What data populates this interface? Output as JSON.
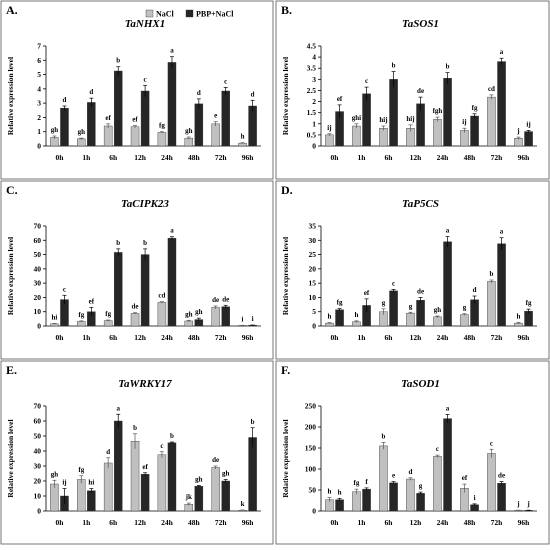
{
  "colors": {
    "nacl": "#c0c0c0",
    "pbp": "#262626",
    "axis": "#000000",
    "panel_border": "#555555"
  },
  "legend": {
    "items": [
      {
        "label": "NaCl",
        "color": "#c0c0c0"
      },
      {
        "label": "PBP+NaCl",
        "color": "#262626"
      }
    ]
  },
  "chart_data": [
    {
      "type": "bar",
      "panel": "A.",
      "title": "TaNHX1",
      "ylabel": "Relative expression level",
      "ylim": [
        0,
        7
      ],
      "yticks": [
        0,
        1,
        2,
        3,
        4,
        5,
        6,
        7
      ],
      "categories": [
        "0h",
        "1h",
        "6h",
        "12h",
        "24h",
        "48h",
        "72h",
        "96h"
      ],
      "series": [
        {
          "name": "NaCl",
          "values": [
            0.6,
            0.5,
            1.4,
            1.35,
            0.95,
            0.55,
            1.55,
            0.2
          ],
          "errors": [
            0.1,
            0.05,
            0.15,
            0.08,
            0.05,
            0.08,
            0.15,
            0.03
          ],
          "labels": [
            "gh",
            "gh",
            "ef",
            "ef",
            "fg",
            "gh",
            "e",
            "h"
          ]
        },
        {
          "name": "PBP+NaCl",
          "values": [
            2.65,
            3.05,
            5.25,
            3.85,
            5.85,
            2.95,
            3.85,
            2.8
          ],
          "errors": [
            0.15,
            0.3,
            0.3,
            0.4,
            0.4,
            0.35,
            0.25,
            0.4
          ],
          "labels": [
            "d",
            "d",
            "b",
            "c",
            "a",
            "d",
            "c",
            "d"
          ]
        }
      ]
    },
    {
      "type": "bar",
      "panel": "B.",
      "title": "TaSOS1",
      "ylabel": "Relative expression level",
      "ylim": [
        0,
        4.5
      ],
      "yticks": [
        0,
        0.5,
        1,
        1.5,
        2,
        2.5,
        3,
        3.5,
        4,
        4.5
      ],
      "categories": [
        "0h",
        "1h",
        "6h",
        "12h",
        "24h",
        "48h",
        "72h",
        "96h"
      ],
      "series": [
        {
          "name": "NaCl",
          "values": [
            0.5,
            0.9,
            0.8,
            0.8,
            1.2,
            0.7,
            2.2,
            0.35
          ],
          "errors": [
            0.05,
            0.1,
            0.1,
            0.15,
            0.1,
            0.1,
            0.1,
            0.05
          ],
          "labels": [
            "ij",
            "ghi",
            "hij",
            "hij",
            "fgh",
            "ij",
            "cd",
            "j"
          ]
        },
        {
          "name": "PBP+NaCl",
          "values": [
            1.55,
            2.35,
            3.0,
            1.9,
            3.05,
            1.35,
            3.8,
            0.65
          ],
          "errors": [
            0.3,
            0.3,
            0.35,
            0.3,
            0.25,
            0.1,
            0.15,
            0.05
          ],
          "labels": [
            "ef",
            "c",
            "b",
            "de",
            "b",
            "fg",
            "a",
            "ij"
          ]
        }
      ]
    },
    {
      "type": "bar",
      "panel": "C.",
      "title": "TaCIPK23",
      "ylabel": "Relative expression level",
      "ylim": [
        0,
        70
      ],
      "yticks": [
        0,
        10,
        20,
        30,
        40,
        50,
        60,
        70
      ],
      "categories": [
        "0h",
        "1h",
        "6h",
        "12h",
        "24h",
        "48h",
        "72h",
        "96h"
      ],
      "series": [
        {
          "name": "NaCl",
          "values": [
            1.5,
            3.2,
            3.8,
            8.8,
            16.5,
            3.5,
            13.0,
            0.4
          ],
          "errors": [
            0.3,
            0.4,
            0.4,
            0.5,
            0.5,
            0.5,
            1.0,
            0.1
          ],
          "labels": [
            "hi",
            "fg",
            "fg",
            "de",
            "cd",
            "gh",
            "de",
            "i"
          ]
        },
        {
          "name": "PBP+NaCl",
          "values": [
            18.5,
            10.0,
            51.5,
            50.0,
            61.5,
            4.5,
            13.5,
            0.6
          ],
          "errors": [
            3.0,
            3.0,
            2.5,
            4.0,
            1.0,
            1.0,
            1.0,
            0.1
          ],
          "labels": [
            "c",
            "ef",
            "b",
            "b",
            "a",
            "gh",
            "de",
            "i"
          ]
        }
      ]
    },
    {
      "type": "bar",
      "panel": "D.",
      "title": "TaP5CS",
      "ylabel": "Relative expression level",
      "ylim": [
        0,
        35
      ],
      "yticks": [
        0,
        5,
        10,
        15,
        20,
        25,
        30,
        35
      ],
      "categories": [
        "0h",
        "1h",
        "6h",
        "12h",
        "24h",
        "48h",
        "72h",
        "96h"
      ],
      "series": [
        {
          "name": "NaCl",
          "values": [
            1.0,
            1.5,
            5.0,
            4.5,
            3.2,
            4.0,
            15.6,
            1.0
          ],
          "errors": [
            0.2,
            0.3,
            1.0,
            0.3,
            0.3,
            0.3,
            0.5,
            0.3
          ],
          "labels": [
            "h",
            "h",
            "g",
            "g",
            "gh",
            "g",
            "b",
            "h"
          ]
        },
        {
          "name": "PBP+NaCl",
          "values": [
            5.7,
            7.2,
            12.3,
            9.0,
            29.5,
            9.2,
            28.8,
            5.2
          ],
          "errors": [
            0.4,
            2.3,
            0.5,
            1.0,
            1.8,
            1.3,
            2.1,
            0.7
          ],
          "labels": [
            "fg",
            "ef",
            "c",
            "de",
            "a",
            "d",
            "a",
            "fg"
          ]
        }
      ]
    },
    {
      "type": "bar",
      "panel": "E.",
      "title": "TaWRKY17",
      "ylabel": "Relative expression level",
      "ylim": [
        0,
        70
      ],
      "yticks": [
        0,
        10,
        20,
        30,
        40,
        50,
        60,
        70
      ],
      "categories": [
        "0h",
        "1h",
        "6h",
        "12h",
        "24h",
        "48h",
        "72h",
        "96h"
      ],
      "series": [
        {
          "name": "NaCl",
          "values": [
            18.0,
            21.0,
            32.0,
            46.5,
            37.5,
            4.5,
            29.0,
            0.5
          ],
          "errors": [
            2.5,
            2.5,
            3.5,
            5.0,
            2.0,
            0.8,
            1.0,
            0.2
          ],
          "labels": [
            "gh",
            "fg",
            "d",
            "b",
            "c",
            "jk",
            "de",
            "k"
          ]
        },
        {
          "name": "PBP+NaCl",
          "values": [
            10.0,
            13.5,
            60.0,
            24.5,
            45.5,
            16.5,
            20.0,
            49.0
          ],
          "errors": [
            5.0,
            1.5,
            4.5,
            1.0,
            0.5,
            0.5,
            1.0,
            6.5
          ],
          "labels": [
            "ij",
            "hi",
            "a",
            "ef",
            "b",
            "gh",
            "gh",
            "b"
          ]
        }
      ]
    },
    {
      "type": "bar",
      "panel": "F.",
      "title": "TaSOD1",
      "ylabel": "Relative expression level",
      "ylim": [
        0,
        250
      ],
      "yticks": [
        0,
        50,
        100,
        150,
        200,
        250
      ],
      "categories": [
        "0h",
        "1h",
        "6h",
        "12h",
        "24h",
        "48h",
        "72h",
        "96h"
      ],
      "series": [
        {
          "name": "NaCl",
          "values": [
            27,
            46,
            155,
            76,
            130,
            54,
            137,
            1.5
          ],
          "errors": [
            5,
            6,
            8,
            3,
            3,
            10,
            10,
            0.5
          ],
          "labels": [
            "h",
            "fg",
            "b",
            "d",
            "c",
            "ef",
            "c",
            "j"
          ]
        },
        {
          "name": "PBP+NaCl",
          "values": [
            27,
            52,
            67,
            42,
            220,
            15,
            66,
            1.5
          ],
          "errors": [
            3,
            3,
            3,
            3,
            10,
            2,
            4,
            0.5
          ],
          "labels": [
            "h",
            "f",
            "e",
            "g",
            "a",
            "i",
            "de",
            "j"
          ]
        }
      ]
    }
  ]
}
